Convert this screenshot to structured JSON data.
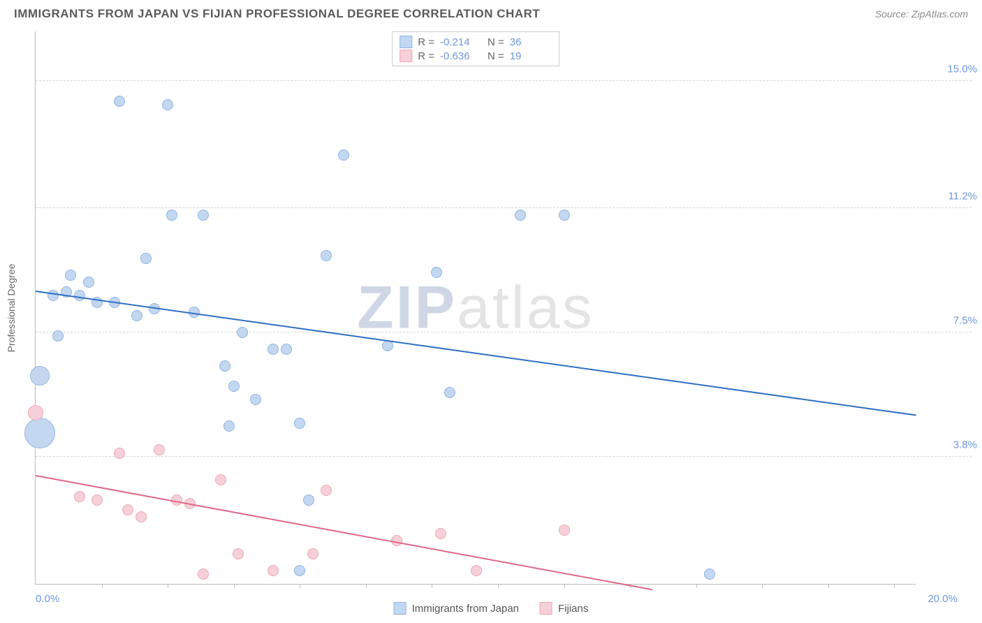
{
  "title": "IMMIGRANTS FROM JAPAN VS FIJIAN PROFESSIONAL DEGREE CORRELATION CHART",
  "source_label": "Source:",
  "source_name": "ZipAtlas.com",
  "watermark_a": "ZIP",
  "watermark_b": "atlas",
  "chart": {
    "type": "scatter",
    "background_color": "#ffffff",
    "grid_color": "#d5d5d5",
    "axis_color": "#bbbbbb",
    "yaxis_title": "Professional Degree",
    "xlim": [
      0.0,
      20.0
    ],
    "ylim": [
      0.0,
      16.5
    ],
    "xtick_positions": [
      1.5,
      3.0,
      4.5,
      6.0,
      7.5,
      9.0,
      10.5,
      12.0,
      13.5,
      15.0,
      16.5,
      18.0,
      19.5
    ],
    "x_min_label": "0.0%",
    "x_max_label": "20.0%",
    "yticks": [
      {
        "v": 3.8,
        "label": "3.8%"
      },
      {
        "v": 7.5,
        "label": "7.5%"
      },
      {
        "v": 11.2,
        "label": "11.2%"
      },
      {
        "v": 15.0,
        "label": "15.0%"
      }
    ],
    "tick_label_color": "#6d98d8",
    "tick_label_fontsize": 15,
    "axis_title_fontsize": 14
  },
  "series": [
    {
      "name": "Immigrants from Japan",
      "fill": "#c3d7f0",
      "stroke": "#8fb4e2",
      "trend_color": "#2e6fc4",
      "R": "-0.214",
      "N": "36",
      "marker_r": 8,
      "trend": {
        "x1": 0.0,
        "y1": 8.7,
        "x2": 20.0,
        "y2": 5.0
      },
      "points": [
        {
          "x": 0.1,
          "y": 6.2,
          "r": 14
        },
        {
          "x": 0.1,
          "y": 4.5,
          "r": 22
        },
        {
          "x": 0.4,
          "y": 8.6
        },
        {
          "x": 0.7,
          "y": 8.7
        },
        {
          "x": 0.5,
          "y": 7.4
        },
        {
          "x": 0.8,
          "y": 9.2
        },
        {
          "x": 1.0,
          "y": 8.6
        },
        {
          "x": 1.2,
          "y": 9.0
        },
        {
          "x": 1.4,
          "y": 8.4
        },
        {
          "x": 1.9,
          "y": 14.4
        },
        {
          "x": 1.8,
          "y": 8.4
        },
        {
          "x": 2.3,
          "y": 8.0
        },
        {
          "x": 2.5,
          "y": 9.7
        },
        {
          "x": 2.7,
          "y": 8.2
        },
        {
          "x": 3.0,
          "y": 14.3
        },
        {
          "x": 3.1,
          "y": 11.0
        },
        {
          "x": 3.6,
          "y": 8.1
        },
        {
          "x": 3.8,
          "y": 11.0
        },
        {
          "x": 4.3,
          "y": 6.5
        },
        {
          "x": 4.4,
          "y": 4.7
        },
        {
          "x": 4.5,
          "y": 5.9
        },
        {
          "x": 4.7,
          "y": 7.5
        },
        {
          "x": 5.0,
          "y": 5.5
        },
        {
          "x": 5.4,
          "y": 7.0
        },
        {
          "x": 5.7,
          "y": 7.0
        },
        {
          "x": 6.0,
          "y": 4.8
        },
        {
          "x": 6.0,
          "y": 0.4
        },
        {
          "x": 6.2,
          "y": 2.5
        },
        {
          "x": 6.6,
          "y": 9.8
        },
        {
          "x": 7.0,
          "y": 12.8
        },
        {
          "x": 8.0,
          "y": 7.1
        },
        {
          "x": 9.1,
          "y": 9.3
        },
        {
          "x": 9.4,
          "y": 5.7
        },
        {
          "x": 11.0,
          "y": 11.0
        },
        {
          "x": 12.0,
          "y": 11.0
        },
        {
          "x": 15.3,
          "y": 0.3
        }
      ]
    },
    {
      "name": "Fijians",
      "fill": "#f6d0d8",
      "stroke": "#eda7b6",
      "trend_color": "#e06787",
      "R": "-0.636",
      "N": "19",
      "marker_r": 8,
      "trend": {
        "x1": 0.0,
        "y1": 3.2,
        "x2": 14.0,
        "y2": -0.2
      },
      "points": [
        {
          "x": 0.0,
          "y": 5.1,
          "r": 11
        },
        {
          "x": 1.0,
          "y": 2.6
        },
        {
          "x": 1.4,
          "y": 2.5
        },
        {
          "x": 1.9,
          "y": 3.9
        },
        {
          "x": 2.1,
          "y": 2.2
        },
        {
          "x": 2.4,
          "y": 2.0
        },
        {
          "x": 2.8,
          "y": 4.0
        },
        {
          "x": 3.2,
          "y": 2.5
        },
        {
          "x": 3.5,
          "y": 2.4
        },
        {
          "x": 3.8,
          "y": 0.3
        },
        {
          "x": 4.2,
          "y": 3.1
        },
        {
          "x": 4.6,
          "y": 0.9
        },
        {
          "x": 5.4,
          "y": 0.4
        },
        {
          "x": 6.3,
          "y": 0.9
        },
        {
          "x": 6.6,
          "y": 2.8
        },
        {
          "x": 8.2,
          "y": 1.3
        },
        {
          "x": 9.2,
          "y": 1.5
        },
        {
          "x": 10.0,
          "y": 0.4
        },
        {
          "x": 12.0,
          "y": 1.6
        }
      ]
    }
  ],
  "legend": {
    "R_label": "R =",
    "N_label": "N ="
  }
}
